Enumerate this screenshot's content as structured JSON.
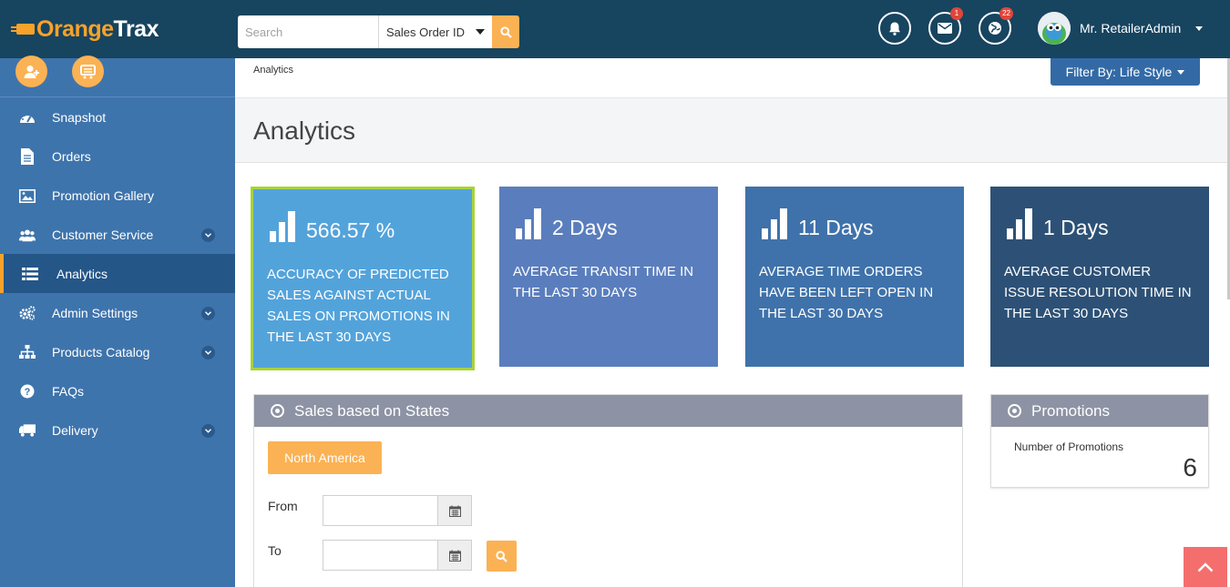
{
  "brand": {
    "logo_part1": "range",
    "logo_part2": "Trax",
    "accent": "#f7a22b"
  },
  "search": {
    "placeholder": "Search",
    "field_selected": "Sales Order ID"
  },
  "header": {
    "notifications": {
      "icon": "bell-icon"
    },
    "messages": {
      "icon": "envelope-icon",
      "badge": "1"
    },
    "globe": {
      "icon": "globe-icon",
      "badge": "22"
    },
    "user_name": "Mr. RetailerAdmin"
  },
  "sidebar": {
    "items": [
      {
        "label": "Snapshot",
        "icon": "dashboard-icon",
        "has_children": false
      },
      {
        "label": "Orders",
        "icon": "document-icon",
        "has_children": false
      },
      {
        "label": "Promotion Gallery",
        "icon": "image-icon",
        "has_children": false
      },
      {
        "label": "Customer Service",
        "icon": "users-icon",
        "has_children": true
      },
      {
        "label": "Analytics",
        "icon": "list-icon",
        "has_children": false,
        "active": true
      },
      {
        "label": "Admin Settings",
        "icon": "gears-icon",
        "has_children": true
      },
      {
        "label": "Products Catalog",
        "icon": "sitemap-icon",
        "has_children": true
      },
      {
        "label": "FAQs",
        "icon": "question-icon",
        "has_children": false
      },
      {
        "label": "Delivery",
        "icon": "truck-icon",
        "has_children": true
      }
    ]
  },
  "breadcrumb": "Analytics",
  "filter_button": "Filter By: Life Style",
  "page_title": "Analytics",
  "stats": [
    {
      "value": "566.57 %",
      "description": "Accuracy of predicted sales against actual sales on promotions in the last 30 days",
      "color": "#53a3db"
    },
    {
      "value": "2 Days",
      "description": "Average transit time in the last 30 days",
      "color": "#5a7ebd"
    },
    {
      "value": "11 Days",
      "description": "Average time orders have been left open in the last 30 days",
      "color": "#3f72aa"
    },
    {
      "value": "1 Days",
      "description": "Average customer issue resolution time in the last 30 days",
      "color": "#2d5176"
    }
  ],
  "sales_panel": {
    "title": "Sales based on States",
    "region_button": "North America",
    "from_label": "From",
    "to_label": "To",
    "from_value": "",
    "to_value": ""
  },
  "promotions_panel": {
    "title": "Promotions",
    "count_label": "Number of Promotions",
    "count": "6"
  }
}
